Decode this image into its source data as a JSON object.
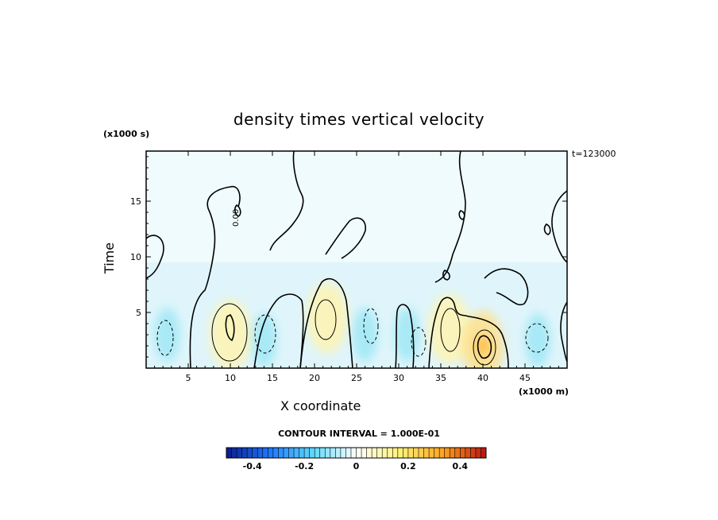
{
  "chart_data": {
    "type": "heatmap",
    "title": "density times vertical velocity",
    "xlabel": "X coordinate",
    "ylabel": "Time",
    "x_units": "(x1000 m)",
    "y_units": "(x1000 s)",
    "time_stamp": "t=123000",
    "xlim": [
      0,
      50
    ],
    "ylim": [
      0,
      19.5
    ],
    "x_ticks": [
      5,
      10,
      15,
      20,
      25,
      30,
      35,
      40,
      45
    ],
    "y_ticks": [
      5,
      10,
      15
    ],
    "contour_interval_label": "CONTOUR INTERVAL = 1.000E-01",
    "contour_labels": [
      "0.00"
    ],
    "colorbar": {
      "range": [
        -0.5,
        0.5
      ],
      "ticks": [
        -0.4,
        -0.2,
        0,
        0.2,
        0.4
      ],
      "tick_labels": [
        "-0.4",
        "-0.2",
        "0",
        "0.2",
        "0.4"
      ],
      "colors": [
        "#0a1a8c",
        "#1e78ff",
        "#5ed8ff",
        "#ffffff",
        "#fff37a",
        "#ffa51e",
        "#b81212"
      ]
    },
    "features": [
      {
        "sign": "positive",
        "x": 10,
        "y": 3,
        "peak": 0.2
      },
      {
        "sign": "positive",
        "x": 21.5,
        "y": 4.5,
        "peak": 0.15
      },
      {
        "sign": "positive",
        "x": 36,
        "y": 3.5,
        "peak": 0.15
      },
      {
        "sign": "positive",
        "x": 40,
        "y": 2,
        "peak": 0.25
      },
      {
        "sign": "negative",
        "x": 2.5,
        "y": 3,
        "peak": -0.1
      },
      {
        "sign": "negative",
        "x": 14,
        "y": 2.5,
        "peak": -0.1
      },
      {
        "sign": "negative",
        "x": 26,
        "y": 3,
        "peak": -0.15
      },
      {
        "sign": "negative",
        "x": 31,
        "y": 3,
        "peak": -0.1
      },
      {
        "sign": "negative",
        "x": 46.5,
        "y": 2.5,
        "peak": -0.1
      }
    ]
  }
}
